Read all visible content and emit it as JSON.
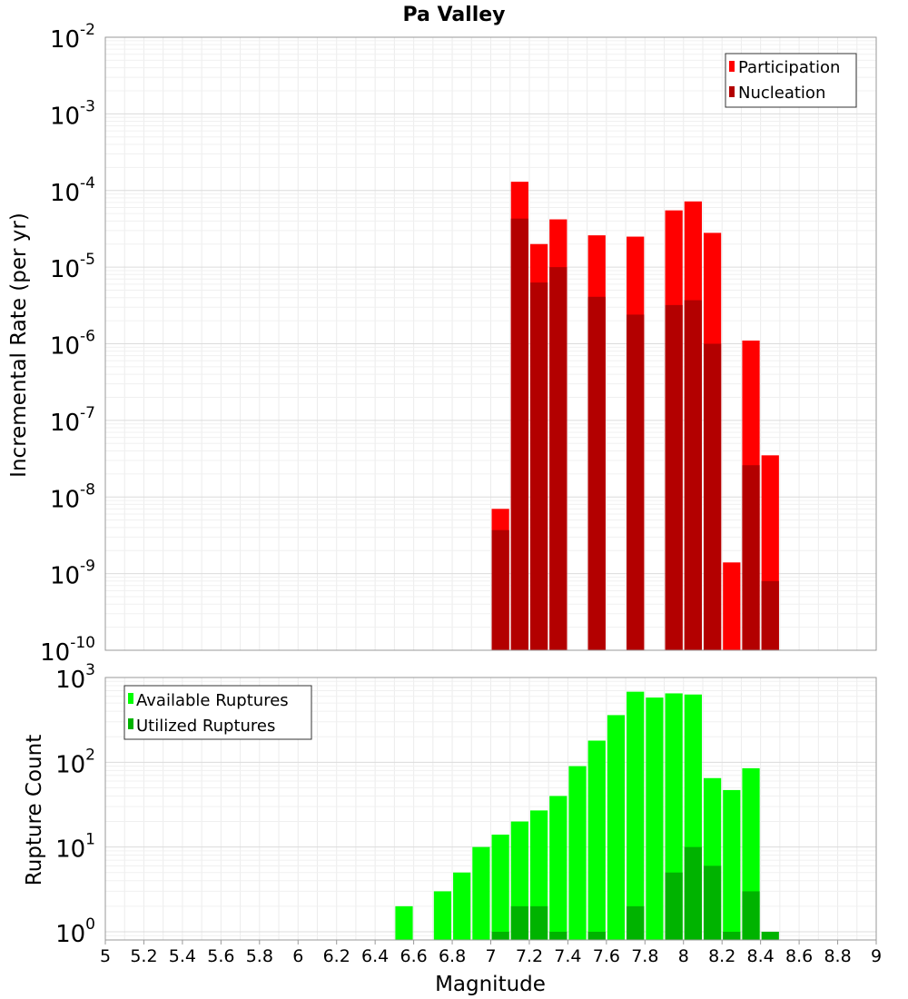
{
  "chart_data": [
    {
      "type": "bar",
      "title": "Pa Valley",
      "xlabel": "",
      "ylabel": "Incremental Rate (per yr)",
      "yscale": "log",
      "ylim": [
        1e-10,
        0.01
      ],
      "xlim": [
        5,
        9
      ],
      "y_tick_labels": [
        {
          "base": "10",
          "exp": "-10"
        },
        {
          "base": "10",
          "exp": "-9"
        },
        {
          "base": "10",
          "exp": "-8"
        },
        {
          "base": "10",
          "exp": "-7"
        },
        {
          "base": "10",
          "exp": "-6"
        },
        {
          "base": "10",
          "exp": "-5"
        },
        {
          "base": "10",
          "exp": "-4"
        },
        {
          "base": "10",
          "exp": "-3"
        },
        {
          "base": "10",
          "exp": "-2"
        }
      ],
      "legend_position": "top-right",
      "grid": true,
      "series": [
        {
          "name": "Participation",
          "color": "#ff0000",
          "x": [
            7.05,
            7.15,
            7.25,
            7.35,
            7.55,
            7.75,
            7.95,
            8.05,
            8.15,
            8.25,
            8.35,
            8.45
          ],
          "values": [
            7e-09,
            0.00013,
            2e-05,
            4.2e-05,
            2.6e-05,
            2.5e-05,
            5.5e-05,
            7.2e-05,
            2.8e-05,
            1.4e-09,
            1.1e-06,
            3.5e-08
          ]
        },
        {
          "name": "Nucleation",
          "color": "#b30000",
          "x": [
            7.05,
            7.15,
            7.25,
            7.35,
            7.55,
            7.75,
            7.95,
            8.05,
            8.15,
            8.35,
            8.45
          ],
          "values": [
            3.7e-09,
            4.3e-05,
            6.3e-06,
            1e-05,
            4.1e-06,
            2.4e-06,
            3.2e-06,
            3.7e-06,
            1e-06,
            2.6e-08,
            8e-10
          ]
        }
      ]
    },
    {
      "type": "bar",
      "title": "",
      "xlabel": "Magnitude",
      "ylabel": "Rupture Count",
      "yscale": "log",
      "ylim": [
        0.8,
        1000
      ],
      "xlim": [
        5,
        9
      ],
      "x_tick_labels": [
        "5",
        "5.2",
        "5.4",
        "5.6",
        "5.8",
        "6",
        "6.2",
        "6.4",
        "6.6",
        "6.8",
        "7",
        "7.2",
        "7.4",
        "7.6",
        "7.8",
        "8",
        "8.2",
        "8.4",
        "8.6",
        "8.8",
        "9"
      ],
      "y_tick_labels": [
        {
          "base": "10",
          "exp": "0"
        },
        {
          "base": "10",
          "exp": "1"
        },
        {
          "base": "10",
          "exp": "2"
        },
        {
          "base": "10",
          "exp": "3"
        }
      ],
      "legend_position": "top-left",
      "grid": true,
      "series": [
        {
          "name": "Available Ruptures",
          "color": "#00ff00",
          "x": [
            6.55,
            6.75,
            6.85,
            6.95,
            7.05,
            7.15,
            7.25,
            7.35,
            7.45,
            7.55,
            7.65,
            7.75,
            7.85,
            7.95,
            8.05,
            8.15,
            8.25,
            8.35
          ],
          "values": [
            2,
            3,
            5,
            10,
            14,
            20,
            27,
            40,
            90,
            180,
            360,
            680,
            580,
            650,
            630,
            65,
            47,
            85
          ]
        },
        {
          "name": "Utilized Ruptures",
          "color": "#00b300",
          "x": [
            7.05,
            7.15,
            7.25,
            7.35,
            7.55,
            7.75,
            7.95,
            8.05,
            8.15,
            8.25,
            8.35,
            8.45
          ],
          "values": [
            1,
            2,
            2,
            1,
            1,
            2,
            5,
            10,
            6,
            1,
            3,
            1
          ]
        }
      ]
    }
  ]
}
